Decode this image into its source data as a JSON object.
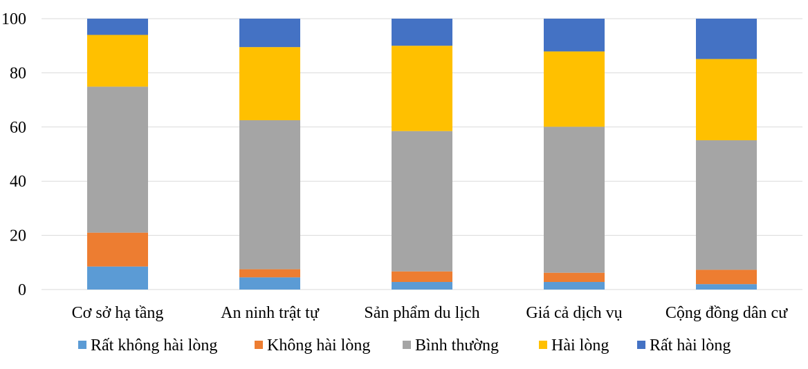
{
  "chart_data": {
    "type": "bar",
    "stacked": true,
    "title": "",
    "xlabel": "",
    "ylabel": "",
    "ylim": [
      0,
      100
    ],
    "yticks": [
      0,
      20,
      40,
      60,
      80,
      100
    ],
    "grid": true,
    "legend_position": "bottom",
    "categories": [
      "Cơ sở hạ tầng",
      "An ninh trật tự",
      "Sản phẩm du lịch",
      "Giá cả dịch vụ",
      "Cộng đồng dân cư"
    ],
    "series": [
      {
        "name": "Rất không hài lòng",
        "color": "#5B9BD5",
        "values": [
          8.5,
          4.5,
          2.8,
          2.8,
          2.0
        ]
      },
      {
        "name": "Không hài lòng",
        "color": "#ED7D31",
        "values": [
          12.5,
          3.0,
          3.9,
          3.4,
          5.3
        ]
      },
      {
        "name": "Bình thường",
        "color": "#A5A5A5",
        "values": [
          53.9,
          55.0,
          51.8,
          53.9,
          47.8
        ]
      },
      {
        "name": "Hài lòng",
        "color": "#FFC000",
        "values": [
          19.1,
          27.0,
          31.5,
          27.8,
          30.0
        ]
      },
      {
        "name": "Rất hài lòng",
        "color": "#4472C4",
        "values": [
          6.0,
          10.5,
          10.0,
          12.1,
          14.9
        ]
      }
    ]
  }
}
